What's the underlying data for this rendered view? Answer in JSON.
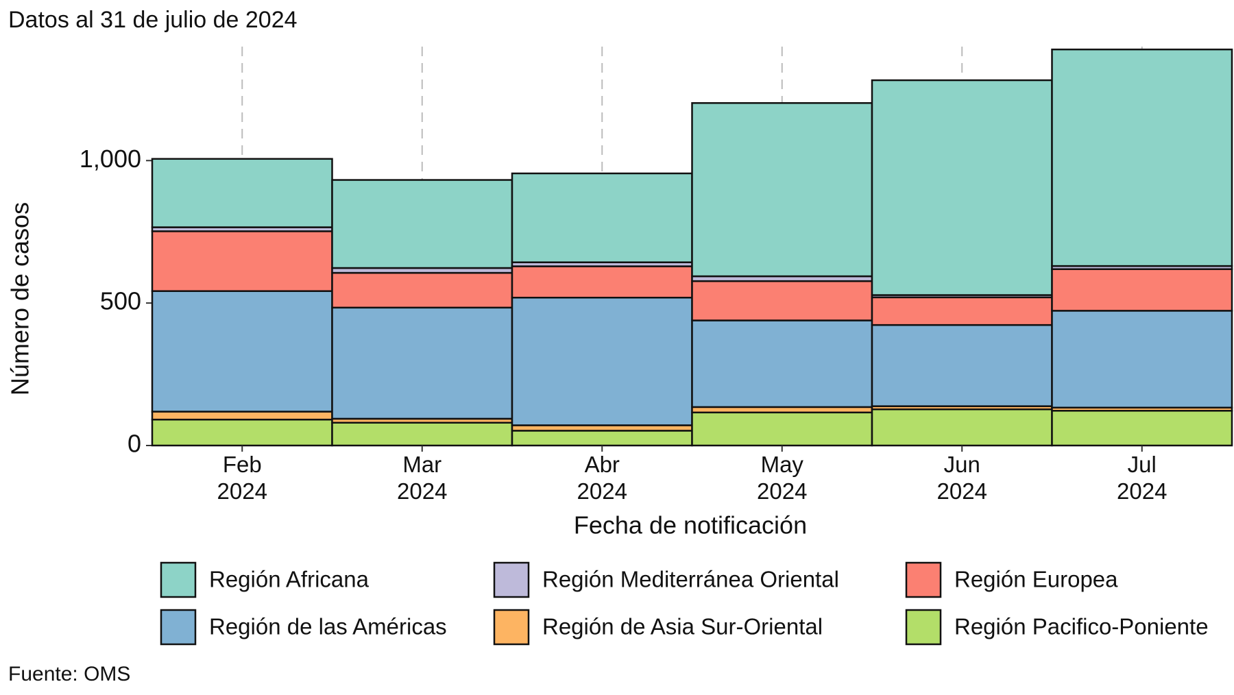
{
  "chart_data": {
    "type": "stacked_bar",
    "title": "Datos al 31 de julio de 2024",
    "x_label": "Fecha de notificación",
    "y_label": "Número de casos",
    "source": "Fuente: OMS",
    "categories": [
      "Feb\n2024",
      "Mar\n2024",
      "Abr\n2024",
      "May\n2024",
      "Jun\n2024",
      "Jul\n2024"
    ],
    "series": [
      {
        "name": "Región Africana",
        "color": "#8dd3c7",
        "values": [
          240,
          309,
          312,
          608,
          754,
          760
        ]
      },
      {
        "name": "Región Mediterránea Oriental",
        "color": "#bebada",
        "values": [
          14,
          17,
          14,
          17,
          8,
          11
        ]
      },
      {
        "name": "Región Europea",
        "color": "#fb8072",
        "values": [
          210,
          122,
          110,
          138,
          97,
          146
        ]
      },
      {
        "name": "Región de las Américas",
        "color": "#80b1d3",
        "values": [
          423,
          390,
          448,
          304,
          285,
          340
        ]
      },
      {
        "name": "Región de Asia Sur-Oriental",
        "color": "#fdb462",
        "values": [
          28,
          14,
          19,
          19,
          11,
          11
        ]
      },
      {
        "name": "Región Pacifico-Poniente",
        "color": "#b3de69",
        "values": [
          91,
          80,
          52,
          116,
          127,
          122
        ]
      }
    ],
    "ylim": [
      0,
      1400
    ],
    "yticks": [
      0,
      500,
      {
        "value": 1000,
        "label": "1,000"
      }
    ],
    "grid": true
  }
}
